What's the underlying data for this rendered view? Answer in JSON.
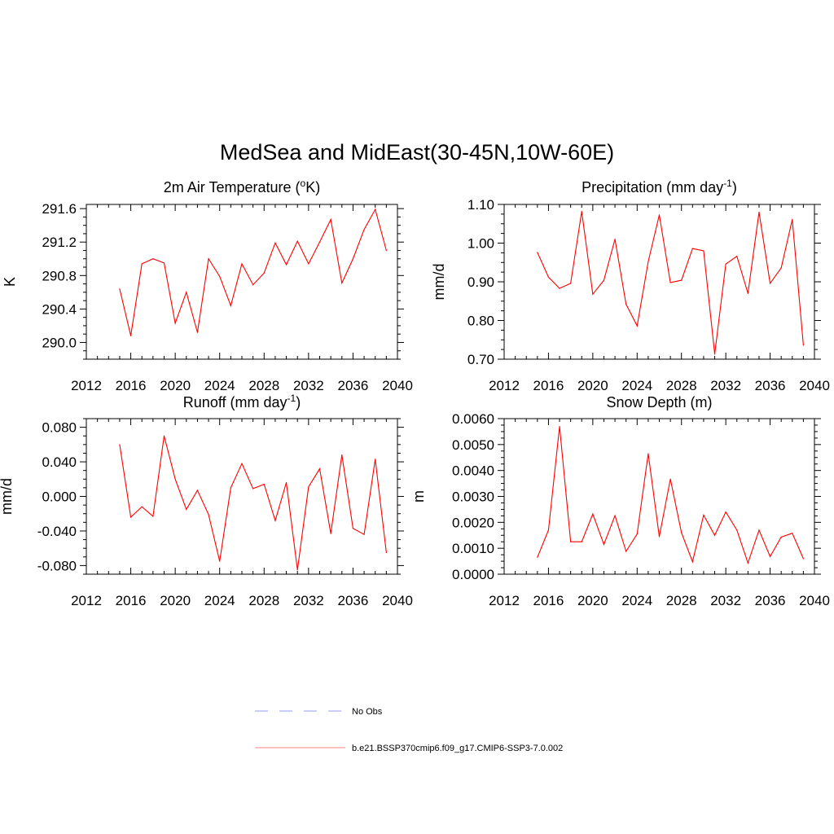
{
  "figure": {
    "title": "MedSea and MidEast(30-45N,10W-60E)"
  },
  "chart_data": [
    {
      "type": "line",
      "title": "2m Air Temperature (",
      "title_sup": "o",
      "title_end": "K)",
      "ylabel": "K",
      "xlim": [
        2012,
        2040
      ],
      "ylim": [
        289.8,
        291.65
      ],
      "xticks": [
        2012,
        2016,
        2020,
        2024,
        2028,
        2032,
        2036,
        2040
      ],
      "xtick_labels": [
        "2012",
        "2016",
        "2020",
        "2024",
        "2028",
        "2032",
        "2036",
        "2040"
      ],
      "yticks": [
        290.0,
        290.4,
        290.8,
        291.2,
        291.6
      ],
      "ytick_labels": [
        "290.0",
        "290.4",
        "290.8",
        "291.2",
        "291.6"
      ],
      "x": [
        2015,
        2016,
        2017,
        2018,
        2019,
        2020,
        2021,
        2022,
        2023,
        2024,
        2025,
        2026,
        2027,
        2028,
        2029,
        2030,
        2031,
        2032,
        2033,
        2034,
        2035,
        2036,
        2037,
        2038,
        2039
      ],
      "series": [
        {
          "values": [
            290.64,
            290.08,
            290.94,
            291.0,
            290.95,
            290.23,
            290.6,
            290.12,
            291.0,
            290.79,
            290.44,
            290.94,
            290.69,
            290.83,
            291.19,
            290.93,
            291.21,
            290.94,
            291.2,
            291.47,
            290.71,
            291.0,
            291.35,
            291.59,
            291.1
          ],
          "color": "#ff0000"
        }
      ]
    },
    {
      "type": "line",
      "title": "Precipitation (mm day",
      "title_sup": "-1",
      "title_end": ")",
      "ylabel": "mm/d",
      "xlim": [
        2012,
        2040
      ],
      "ylim": [
        0.7,
        1.1
      ],
      "xticks": [
        2012,
        2016,
        2020,
        2024,
        2028,
        2032,
        2036,
        2040
      ],
      "xtick_labels": [
        "2012",
        "2016",
        "2020",
        "2024",
        "2028",
        "2032",
        "2036",
        "2040"
      ],
      "yticks": [
        0.7,
        0.8,
        0.9,
        1.0,
        1.1
      ],
      "ytick_labels": [
        "0.70",
        "0.80",
        "0.90",
        "1.00",
        "1.10"
      ],
      "x": [
        2015,
        2016,
        2017,
        2018,
        2019,
        2020,
        2021,
        2022,
        2023,
        2024,
        2025,
        2026,
        2027,
        2028,
        2029,
        2030,
        2031,
        2032,
        2033,
        2034,
        2035,
        2036,
        2037,
        2038,
        2039
      ],
      "series": [
        {
          "values": [
            0.976,
            0.912,
            0.883,
            0.896,
            1.082,
            0.868,
            0.904,
            1.01,
            0.842,
            0.786,
            0.952,
            1.073,
            0.898,
            0.904,
            0.986,
            0.98,
            0.713,
            0.946,
            0.966,
            0.87,
            1.08,
            0.896,
            0.936,
            1.061,
            0.736
          ],
          "color": "#ff0000"
        }
      ]
    },
    {
      "type": "line",
      "title": "Runoff (mm day",
      "title_sup": "-1",
      "title_end": ")",
      "ylabel": "mm/d",
      "xlim": [
        2012,
        2040
      ],
      "ylim": [
        -0.09,
        0.09
      ],
      "xticks": [
        2012,
        2016,
        2020,
        2024,
        2028,
        2032,
        2036,
        2040
      ],
      "xtick_labels": [
        "2012",
        "2016",
        "2020",
        "2024",
        "2028",
        "2032",
        "2036",
        "2040"
      ],
      "yticks": [
        -0.08,
        -0.04,
        0.0,
        0.04,
        0.08
      ],
      "ytick_labels": [
        "-0.080",
        "-0.040",
        "0.000",
        "0.040",
        "0.080"
      ],
      "x": [
        2015,
        2016,
        2017,
        2018,
        2019,
        2020,
        2021,
        2022,
        2023,
        2024,
        2025,
        2026,
        2027,
        2028,
        2029,
        2030,
        2031,
        2032,
        2033,
        2034,
        2035,
        2036,
        2037,
        2038,
        2039
      ],
      "series": [
        {
          "values": [
            0.06,
            -0.024,
            -0.012,
            -0.023,
            0.07,
            0.02,
            -0.015,
            0.007,
            -0.021,
            -0.075,
            0.01,
            0.038,
            0.009,
            0.014,
            -0.028,
            0.016,
            -0.085,
            0.011,
            0.032,
            -0.043,
            0.048,
            -0.037,
            -0.044,
            0.043,
            -0.065
          ],
          "color": "#ff0000"
        }
      ]
    },
    {
      "type": "line",
      "title": "Snow Depth (m)",
      "title_sup": "",
      "title_end": "",
      "ylabel": "m",
      "xlim": [
        2012,
        2040
      ],
      "ylim": [
        0.0,
        0.006
      ],
      "xticks": [
        2012,
        2016,
        2020,
        2024,
        2028,
        2032,
        2036,
        2040
      ],
      "xtick_labels": [
        "2012",
        "2016",
        "2020",
        "2024",
        "2028",
        "2032",
        "2036",
        "2040"
      ],
      "yticks": [
        0.0,
        0.001,
        0.002,
        0.003,
        0.004,
        0.005,
        0.006
      ],
      "ytick_labels": [
        "0.0000",
        "0.0010",
        "0.0020",
        "0.0030",
        "0.0040",
        "0.0050",
        "0.0060"
      ],
      "x": [
        2015,
        2016,
        2017,
        2018,
        2019,
        2020,
        2021,
        2022,
        2023,
        2024,
        2025,
        2026,
        2027,
        2028,
        2029,
        2030,
        2031,
        2032,
        2033,
        2034,
        2035,
        2036,
        2037,
        2038,
        2039
      ],
      "series": [
        {
          "values": [
            0.00065,
            0.0017,
            0.0057,
            0.00125,
            0.00125,
            0.00232,
            0.00115,
            0.00226,
            0.00088,
            0.00155,
            0.00465,
            0.00145,
            0.00367,
            0.0016,
            0.00048,
            0.00228,
            0.0015,
            0.0024,
            0.0017,
            0.00043,
            0.0017,
            0.00068,
            0.00143,
            0.00158,
            0.0006
          ],
          "color": "#ff0000"
        }
      ]
    }
  ],
  "legend": [
    {
      "label": "No Obs",
      "style": "dashed",
      "color": "#9999ff"
    },
    {
      "label": "b.e21.BSSP370cmip6.f09_g17.CMIP6-SSP3-7.0.002",
      "style": "solid",
      "color": "#ff8080"
    }
  ]
}
